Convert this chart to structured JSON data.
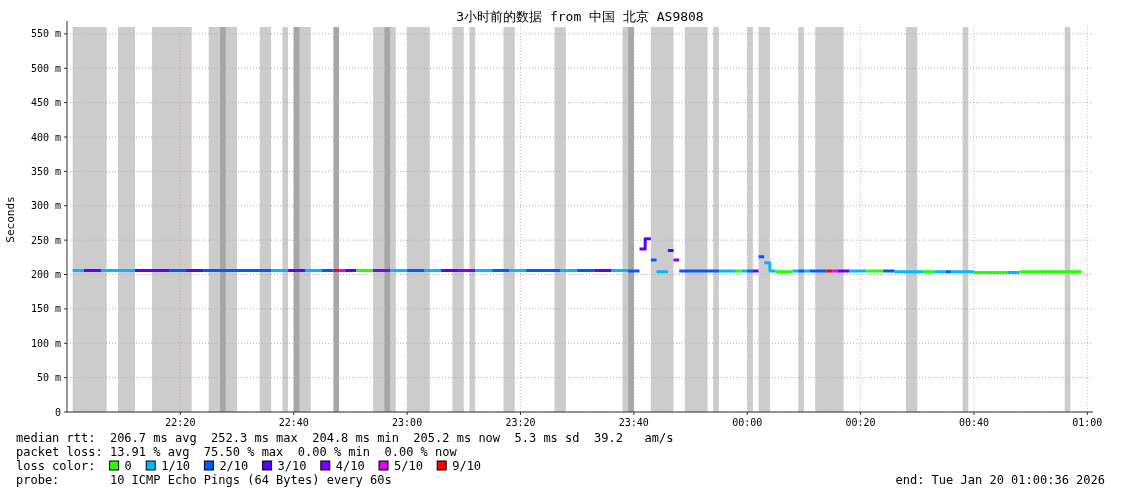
{
  "chart_data": {
    "type": "line",
    "title": "3小时前的数据 from 中国 北京 AS9808",
    "ylabel": "Seconds",
    "legend_title": "loss color:",
    "legend": "bottom",
    "grid": true,
    "xlim": [
      "2026-01-19T22:00",
      "2026-01-20T01:01"
    ],
    "xticks": [
      {
        "value": "2026-01-19T22:20",
        "label": "22:20"
      },
      {
        "value": "2026-01-19T22:40",
        "label": "22:40"
      },
      {
        "value": "2026-01-19T23:00",
        "label": "23:00"
      },
      {
        "value": "2026-01-19T23:20",
        "label": "23:20"
      },
      {
        "value": "2026-01-19T23:40",
        "label": "23:40"
      },
      {
        "value": "2026-01-20T00:00",
        "label": "00:00"
      },
      {
        "value": "2026-01-20T00:20",
        "label": "00:20"
      },
      {
        "value": "2026-01-20T00:40",
        "label": "00:40"
      },
      {
        "value": "2026-01-20T01:00",
        "label": "01:00"
      }
    ],
    "ylim": [
      0,
      560
    ],
    "yticks": [
      0,
      {
        "value": 50,
        "label": "50 m"
      },
      {
        "value": 100,
        "label": "100 m"
      },
      {
        "value": 150,
        "label": "150 m"
      },
      {
        "value": 200,
        "label": "200 m"
      },
      {
        "value": 250,
        "label": "250 m"
      },
      {
        "value": 300,
        "label": "300 m"
      },
      {
        "value": 350,
        "label": "350 m"
      },
      {
        "value": 400,
        "label": "400 m"
      },
      {
        "value": 450,
        "label": "450 m"
      },
      {
        "value": 500,
        "label": "500 m"
      },
      {
        "value": 550,
        "label": "550 m"
      }
    ],
    "bands": [
      {
        "axis": "x",
        "from": "2026-01-19T22:01",
        "to": "2026-01-19T22:07",
        "color": "#cccccc"
      },
      {
        "axis": "x",
        "from": "2026-01-19T22:09",
        "to": "2026-01-19T22:12",
        "color": "#cccccc"
      },
      {
        "axis": "x",
        "from": "2026-01-19T22:15",
        "to": "2026-01-19T22:22",
        "color": "#cccccc"
      },
      {
        "axis": "x",
        "from": "2026-01-19T22:25",
        "to": "2026-01-19T22:30",
        "color": "#cccccc"
      },
      {
        "axis": "x",
        "from": "2026-01-19T22:34",
        "to": "2026-01-19T22:36",
        "color": "#cccccc"
      },
      {
        "axis": "x",
        "from": "2026-01-19T22:38",
        "to": "2026-01-19T22:39",
        "color": "#cccccc"
      },
      {
        "axis": "x",
        "from": "2026-01-19T22:40",
        "to": "2026-01-19T22:43",
        "color": "#cccccc"
      },
      {
        "axis": "x",
        "from": "2026-01-19T22:54",
        "to": "2026-01-19T22:58",
        "color": "#cccccc"
      },
      {
        "axis": "x",
        "from": "2026-01-19T23:00",
        "to": "2026-01-19T23:04",
        "color": "#cccccc"
      },
      {
        "axis": "x",
        "from": "2026-01-19T23:08",
        "to": "2026-01-19T23:10",
        "color": "#cccccc"
      },
      {
        "axis": "x",
        "from": "2026-01-19T23:11",
        "to": "2026-01-19T23:12",
        "color": "#cccccc"
      },
      {
        "axis": "x",
        "from": "2026-01-19T23:17",
        "to": "2026-01-19T23:19",
        "color": "#cccccc"
      },
      {
        "axis": "x",
        "from": "2026-01-19T23:26",
        "to": "2026-01-19T23:28",
        "color": "#cccccc"
      },
      {
        "axis": "x",
        "from": "2026-01-19T23:38",
        "to": "2026-01-19T23:40",
        "color": "#cccccc"
      },
      {
        "axis": "x",
        "from": "2026-01-19T23:43",
        "to": "2026-01-19T23:47",
        "color": "#cccccc"
      },
      {
        "axis": "x",
        "from": "2026-01-19T23:49",
        "to": "2026-01-19T23:53",
        "color": "#cccccc"
      },
      {
        "axis": "x",
        "from": "2026-01-19T23:54",
        "to": "2026-01-19T23:55",
        "color": "#cccccc"
      },
      {
        "axis": "x",
        "from": "2026-01-20T00:00",
        "to": "2026-01-20T00:01",
        "color": "#cccccc"
      },
      {
        "axis": "x",
        "from": "2026-01-20T00:02",
        "to": "2026-01-20T00:04",
        "color": "#cccccc"
      },
      {
        "axis": "x",
        "from": "2026-01-20T00:09",
        "to": "2026-01-20T00:10",
        "color": "#cccccc"
      },
      {
        "axis": "x",
        "from": "2026-01-20T00:12",
        "to": "2026-01-20T00:17",
        "color": "#cccccc"
      },
      {
        "axis": "x",
        "from": "2026-01-20T00:28",
        "to": "2026-01-20T00:30",
        "color": "#cccccc"
      },
      {
        "axis": "x",
        "from": "2026-01-20T00:38",
        "to": "2026-01-20T00:39",
        "color": "#cccccc"
      },
      {
        "axis": "x",
        "from": "2026-01-20T00:56",
        "to": "2026-01-20T00:57",
        "color": "#cccccc"
      },
      {
        "axis": "x",
        "from": "2026-01-19T22:27",
        "to": "2026-01-19T22:28",
        "color": "#a6a6a6"
      },
      {
        "axis": "x",
        "from": "2026-01-19T22:40",
        "to": "2026-01-19T22:41",
        "color": "#a6a6a6"
      },
      {
        "axis": "x",
        "from": "2026-01-19T22:47",
        "to": "2026-01-19T22:48",
        "color": "#a6a6a6"
      },
      {
        "axis": "x",
        "from": "2026-01-19T22:56",
        "to": "2026-01-19T22:57",
        "color": "#a6a6a6"
      },
      {
        "axis": "x",
        "from": "2026-01-19T23:39",
        "to": "2026-01-19T23:40",
        "color": "#a6a6a6"
      }
    ],
    "series": [
      {
        "name": "0",
        "color": "#26ff00",
        "x": [
          "2026-01-19T22:51",
          "2026-01-19T22:54",
          null,
          "2026-01-19T23:58",
          "2026-01-19T23:59",
          null,
          "2026-01-20T00:05",
          "2026-01-20T00:08",
          null,
          "2026-01-20T00:21",
          "2026-01-20T00:24",
          null,
          "2026-01-20T00:31",
          "2026-01-20T00:33",
          null,
          "2026-01-20T00:40",
          "2026-01-20T00:46",
          null,
          "2026-01-20T00:48",
          "2026-01-20T00:59"
        ],
        "values": [
          206,
          206,
          null,
          205,
          205,
          null,
          204,
          204,
          null,
          205,
          205,
          null,
          204,
          204,
          null,
          203,
          203,
          null,
          204,
          204
        ]
      },
      {
        "name": "1/10",
        "color": "#00b8ff",
        "x": [
          "2026-01-19T22:01",
          "2026-01-19T22:03",
          null,
          "2026-01-19T22:06",
          "2026-01-19T22:12",
          null,
          "2026-01-19T22:36",
          "2026-01-19T22:39",
          null,
          "2026-01-19T22:42",
          "2026-01-19T22:45",
          null,
          "2026-01-19T22:57",
          "2026-01-19T23:00",
          null,
          "2026-01-19T23:03",
          "2026-01-19T23:06",
          null,
          "2026-01-19T23:12",
          "2026-01-19T23:15",
          null,
          "2026-01-19T23:18",
          "2026-01-19T23:21",
          null,
          "2026-01-19T23:27",
          "2026-01-19T23:30",
          null,
          "2026-01-19T23:36",
          "2026-01-19T23:39",
          null,
          "2026-01-19T23:44",
          "2026-01-19T23:46",
          null,
          "2026-01-19T23:55",
          "2026-01-19T23:58",
          null,
          "2026-01-19T23:59",
          "2026-01-20T00:00",
          null,
          "2026-01-20T00:03",
          "2026-01-20T00:04",
          "2026-01-20T00:04",
          "2026-01-20T00:05",
          null,
          "2026-01-20T00:08",
          "2026-01-20T00:09",
          null,
          "2026-01-20T00:10",
          "2026-01-20T00:11",
          null,
          "2026-01-20T00:18",
          "2026-01-20T00:21",
          null,
          "2026-01-20T00:26",
          "2026-01-20T00:31",
          null,
          "2026-01-20T00:33",
          "2026-01-20T00:35",
          null,
          "2026-01-20T00:36",
          "2026-01-20T00:40",
          null,
          "2026-01-20T00:46",
          "2026-01-20T00:48"
        ],
        "values": [
          206,
          206,
          null,
          206,
          206,
          null,
          206,
          206,
          null,
          206,
          206,
          null,
          206,
          206,
          null,
          206,
          206,
          null,
          206,
          206,
          null,
          206,
          206,
          null,
          206,
          206,
          null,
          206,
          206,
          null,
          204,
          204,
          null,
          205,
          205,
          null,
          205,
          205,
          null,
          217,
          217,
          205,
          205,
          null,
          205,
          205,
          null,
          205,
          205,
          null,
          205,
          205,
          null,
          204,
          204,
          null,
          204,
          204,
          null,
          204,
          204,
          null,
          203,
          203
        ]
      },
      {
        "name": "2/10",
        "color": "#0059ff",
        "x": [
          "2026-01-19T22:18",
          "2026-01-19T22:21",
          null,
          "2026-01-19T22:24",
          "2026-01-19T22:36",
          null,
          "2026-01-19T22:45",
          "2026-01-19T22:47",
          null,
          "2026-01-19T23:00",
          "2026-01-19T23:03",
          null,
          "2026-01-19T23:15",
          "2026-01-19T23:18",
          null,
          "2026-01-19T23:21",
          "2026-01-19T23:27",
          null,
          "2026-01-19T23:30",
          "2026-01-19T23:33",
          null,
          "2026-01-19T23:39",
          "2026-01-19T23:41",
          null,
          "2026-01-19T23:43",
          "2026-01-19T23:44",
          null,
          "2026-01-19T23:48",
          "2026-01-19T23:55",
          null,
          "2026-01-20T00:00",
          "2026-01-20T00:01",
          null,
          "2026-01-20T00:02",
          "2026-01-20T00:03",
          null,
          "2026-01-20T00:09",
          "2026-01-20T00:10",
          null,
          "2026-01-20T00:11",
          "2026-01-20T00:14",
          null,
          "2026-01-20T00:24",
          "2026-01-20T00:26",
          null,
          "2026-01-20T00:35",
          "2026-01-20T00:36"
        ],
        "values": [
          206,
          206,
          null,
          206,
          206,
          null,
          206,
          206,
          null,
          206,
          206,
          null,
          206,
          206,
          null,
          206,
          206,
          null,
          206,
          206,
          null,
          205,
          205,
          null,
          221,
          221,
          null,
          205,
          205,
          null,
          205,
          205,
          null,
          226,
          226,
          null,
          205,
          205,
          null,
          205,
          205,
          null,
          205,
          205,
          null,
          204,
          204
        ]
      },
      {
        "name": "3/10",
        "color": "#5e00ff",
        "x": [
          "2026-01-19T22:03",
          "2026-01-19T22:06",
          null,
          "2026-01-19T22:12",
          "2026-01-19T22:18",
          null,
          "2026-01-19T22:21",
          "2026-01-19T22:24",
          null,
          "2026-01-19T22:39",
          "2026-01-19T22:42",
          null,
          "2026-01-19T22:49",
          "2026-01-19T22:51",
          null,
          "2026-01-19T23:06",
          "2026-01-19T23:09",
          null,
          "2026-01-19T23:33",
          "2026-01-19T23:36",
          null,
          "2026-01-19T23:41",
          "2026-01-19T23:42",
          "2026-01-19T23:42",
          "2026-01-19T23:43",
          null,
          "2026-01-19T23:46",
          "2026-01-19T23:47",
          null,
          "2026-01-20T00:01",
          "2026-01-20T00:02",
          null,
          "2026-01-20T00:16",
          "2026-01-20T00:18"
        ],
        "values": [
          206,
          206,
          null,
          206,
          206,
          null,
          206,
          206,
          null,
          206,
          206,
          null,
          206,
          206,
          null,
          206,
          206,
          null,
          206,
          206,
          null,
          237,
          237,
          252,
          252,
          null,
          235,
          235,
          null,
          205,
          205,
          null,
          205,
          205
        ]
      },
      {
        "name": "4/10",
        "color": "#7e00ff",
        "x": [
          "2026-01-19T22:54",
          "2026-01-19T22:57",
          null,
          "2026-01-19T23:09",
          "2026-01-19T23:12",
          null,
          "2026-01-19T23:47",
          "2026-01-19T23:48"
        ],
        "values": [
          206,
          206,
          null,
          206,
          206,
          null,
          221,
          221
        ]
      },
      {
        "name": "5/10",
        "color": "#dd00ff",
        "x": [
          "2026-01-19T22:48",
          "2026-01-19T22:49",
          null,
          "2026-01-20T00:15",
          "2026-01-20T00:16"
        ],
        "values": [
          206,
          206,
          null,
          205,
          205
        ]
      },
      {
        "name": "9/10",
        "color": "#ff0000",
        "x": [
          "2026-01-19T22:47",
          "2026-01-19T22:48",
          null,
          "2026-01-20T00:14",
          "2026-01-20T00:15"
        ],
        "values": [
          206,
          206,
          null,
          205,
          205
        ]
      }
    ],
    "annotations": [
      "median rtt:  206.7 ms avg  252.3 ms max  204.8 ms min  205.2 ms now  5.3 ms sd  39.2   am/s",
      "packet loss: 13.91 % avg  75.50 % max  0.00 % min  0.00 % now",
      "probe:       10 ICMP Echo Pings (64 Bytes) every 60s",
      "end: Tue Jan 20 01:00:36 2026"
    ]
  }
}
